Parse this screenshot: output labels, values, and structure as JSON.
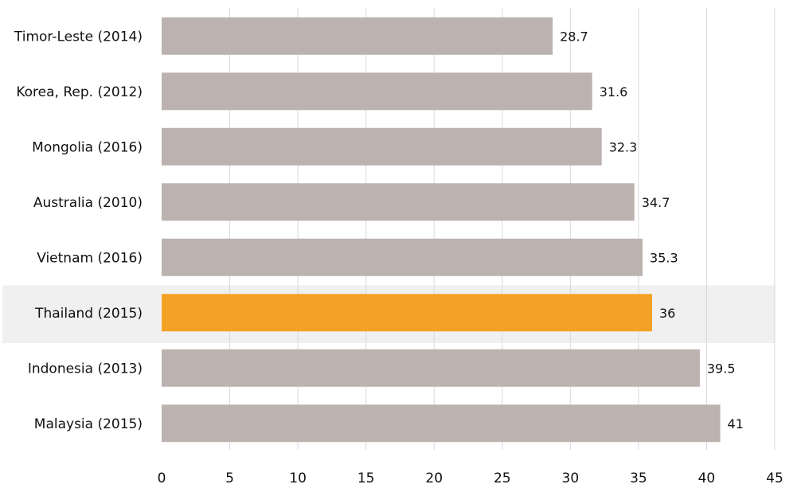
{
  "chart_data": {
    "type": "bar",
    "orientation": "horizontal",
    "categories": [
      "Timor-Leste (2014)",
      "Korea, Rep. (2012)",
      "Mongolia (2016)",
      "Australia (2010)",
      "Vietnam (2016)",
      "Thailand (2015)",
      "Indonesia (2013)",
      "Malaysia (2015)"
    ],
    "values": [
      28.7,
      31.6,
      32.3,
      34.7,
      35.3,
      36,
      39.5,
      41
    ],
    "value_labels": [
      "28.7",
      "31.6",
      "32.3",
      "34.7",
      "35.3",
      "36",
      "39.5",
      "41"
    ],
    "highlight_category": "Thailand (2015)",
    "xlim": [
      0,
      45
    ],
    "xticks": [
      "0",
      "5",
      "10",
      "15",
      "20",
      "25",
      "30",
      "35",
      "40",
      "45"
    ],
    "grid": "vertical",
    "title": "",
    "xlabel": "",
    "ylabel": "",
    "colors": {
      "bar": "#bcb2b0",
      "highlight_bar": "#f4a226",
      "highlight_band": "#f0f0f0",
      "grid": "#d9d9d9"
    }
  }
}
